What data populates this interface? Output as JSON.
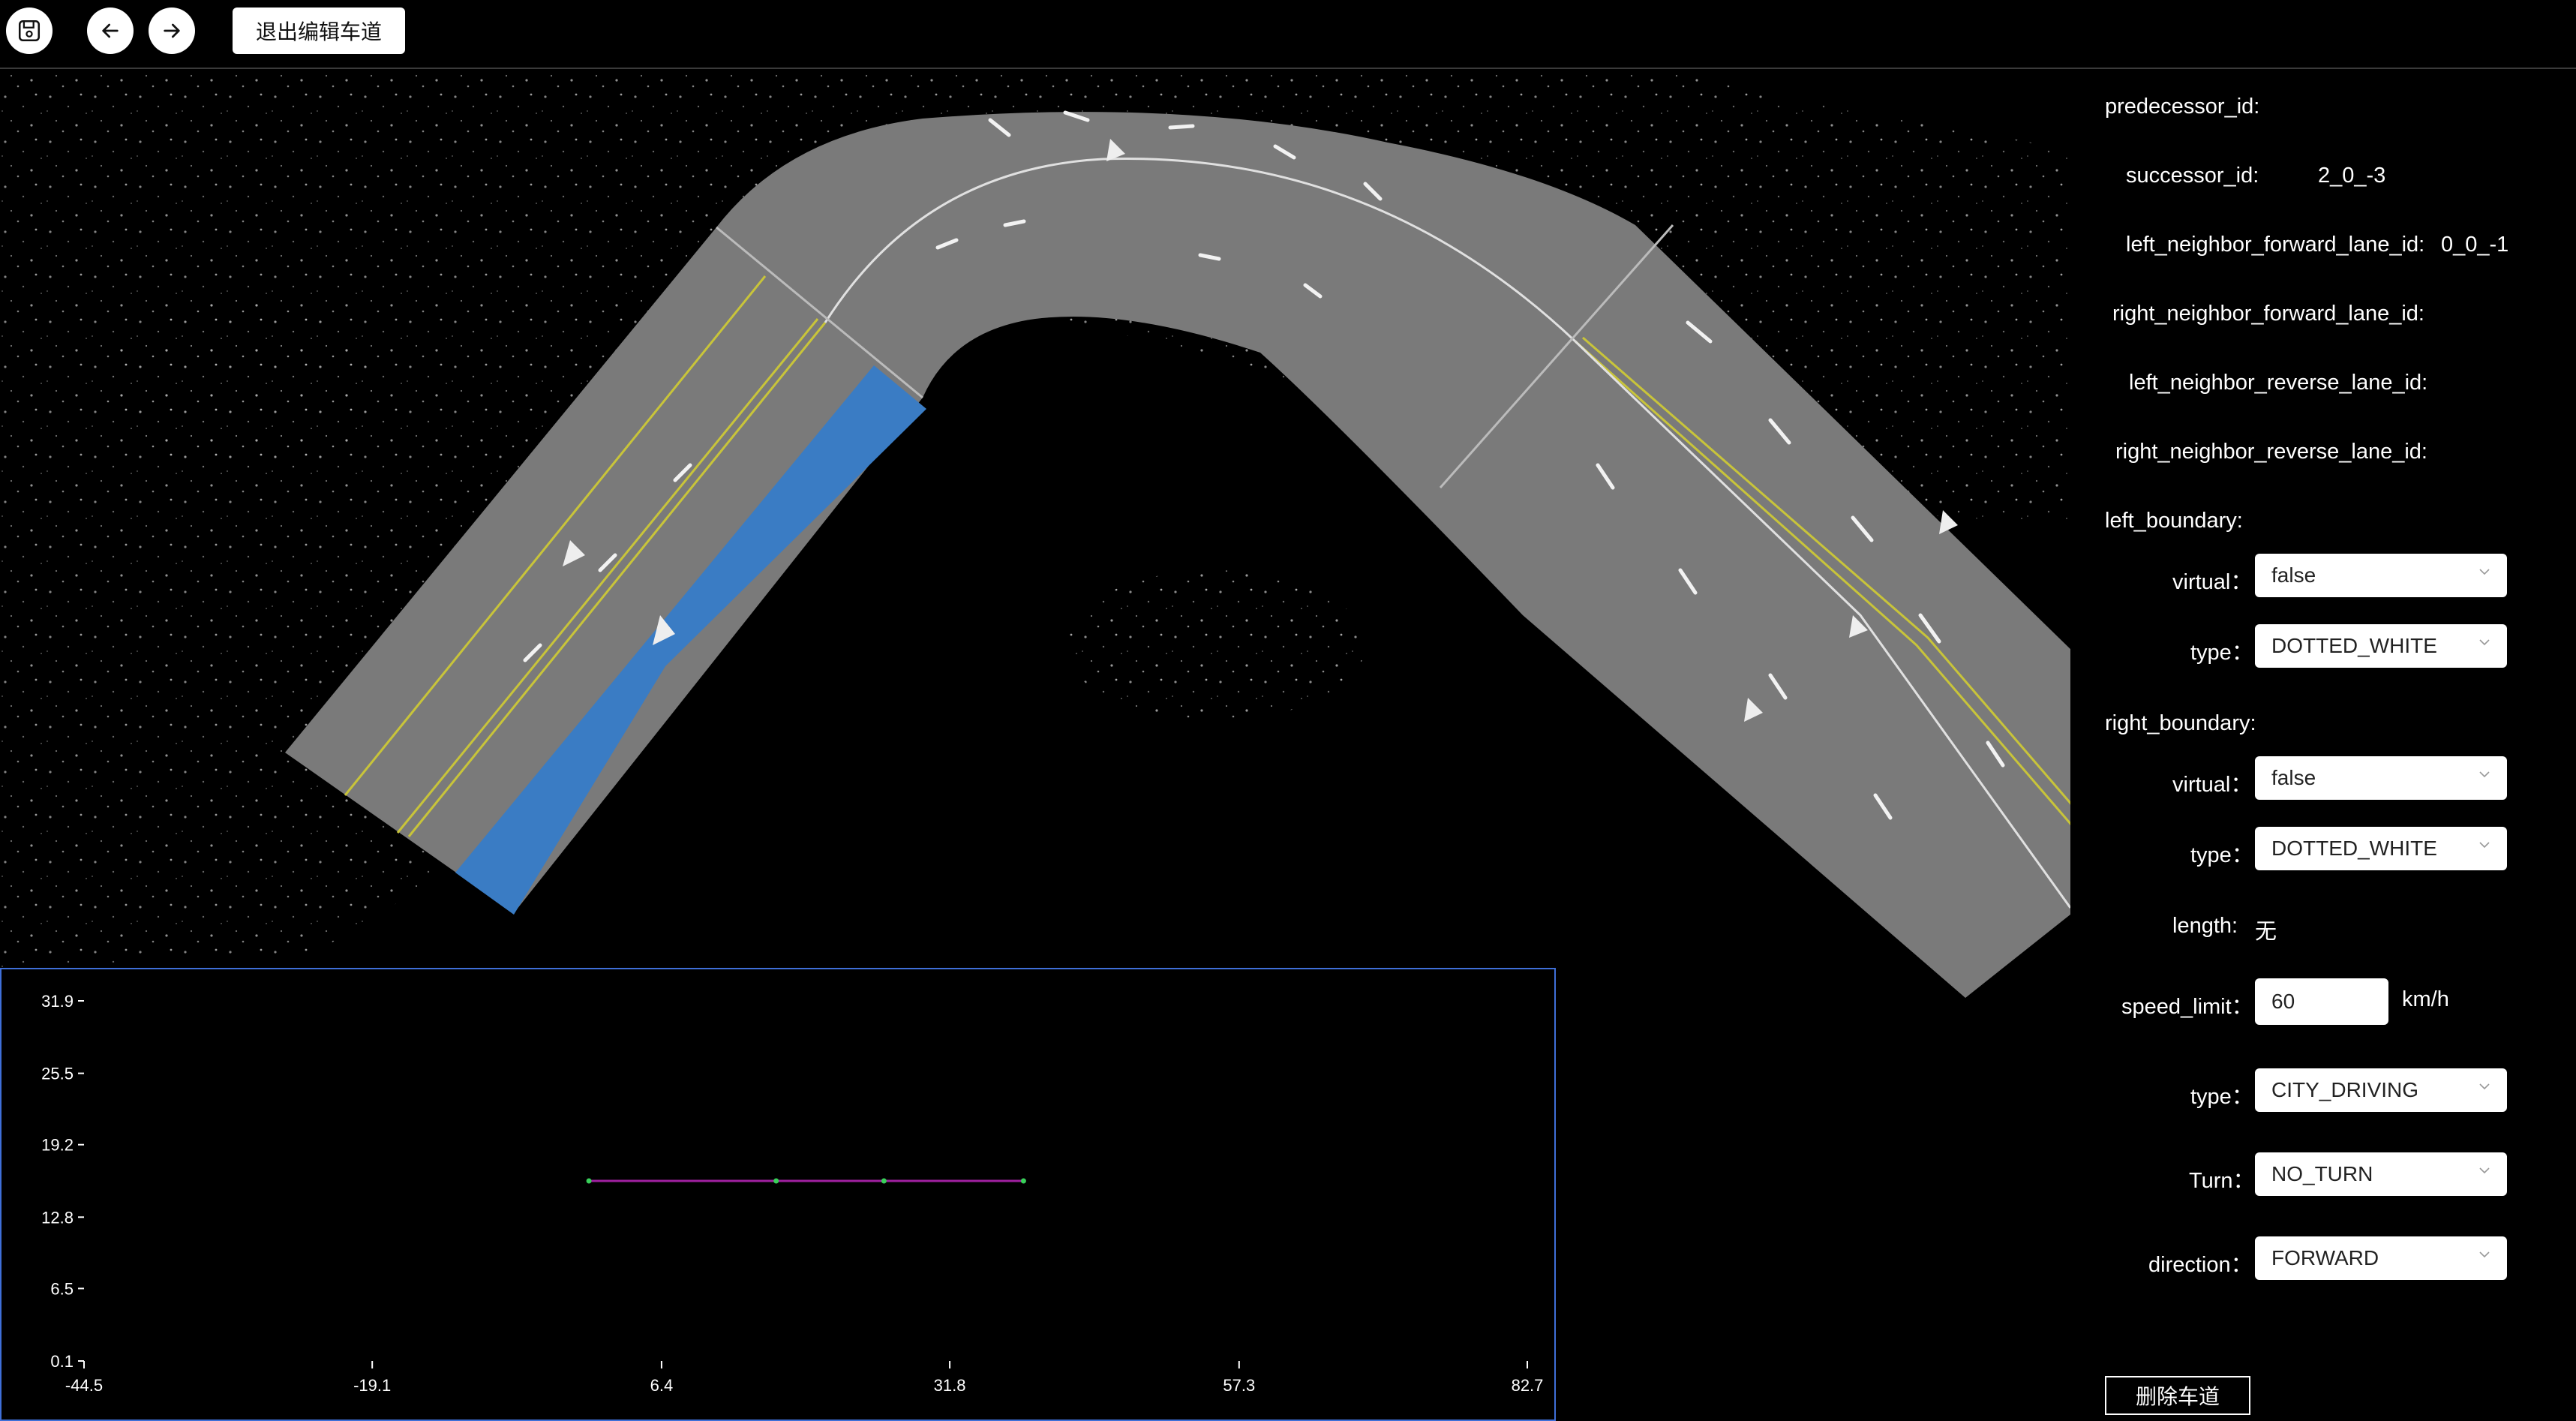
{
  "toolbar": {
    "save_icon": "save-icon",
    "undo_icon": "arrow-left-icon",
    "redo_icon": "arrow-right-icon",
    "exit_label": "退出编辑车道"
  },
  "panel": {
    "predecessor_label": "predecessor_id:",
    "predecessor_value": "",
    "successor_label": "successor_id:",
    "successor_value": "2_0_-3",
    "left_fwd_label": "left_neighbor_forward_lane_id:",
    "left_fwd_value": "0_0_-1",
    "right_fwd_label": "right_neighbor_forward_lane_id:",
    "right_fwd_value": "",
    "left_rev_label": "left_neighbor_reverse_lane_id:",
    "left_rev_value": "",
    "right_rev_label": "right_neighbor_reverse_lane_id:",
    "right_rev_value": "",
    "left_boundary_label": "left_boundary:",
    "left_boundary": {
      "virtual_label": "virtual：",
      "virtual_value": "false",
      "type_label": "type：",
      "type_value": "DOTTED_WHITE"
    },
    "right_boundary_label": "right_boundary:",
    "right_boundary": {
      "virtual_label": "virtual：",
      "virtual_value": "false",
      "type_label": "type：",
      "type_value": "DOTTED_WHITE"
    },
    "length_label": "length:",
    "length_value": "无",
    "speed_limit_label": "speed_limit：",
    "speed_limit_value": "60",
    "speed_unit": "km/h",
    "lane_type_label": "type：",
    "lane_type_value": "CITY_DRIVING",
    "turn_label": "Turn：",
    "turn_value": "NO_TURN",
    "direction_label": "direction：",
    "direction_value": "FORWARD",
    "delete_label": "删除车道"
  },
  "colors": {
    "road": "#7a7a7a",
    "selected_lane": "#3a7cc4",
    "yellow_line": "#c8c43a",
    "chart_border": "#3f6fd8",
    "profile_line": "#a020a0",
    "profile_point": "#39d05a"
  },
  "chart_data": {
    "type": "line",
    "title": "",
    "xlabel": "",
    "ylabel": "",
    "x_ticks": [
      "-44.5",
      "-19.1",
      "6.4",
      "31.8",
      "57.3",
      "82.7"
    ],
    "y_ticks": [
      "0.1",
      "6.5",
      "12.8",
      "19.2",
      "25.5",
      "31.9"
    ],
    "xlim": [
      -44.5,
      82.7
    ],
    "ylim": [
      0.1,
      31.9
    ],
    "series": [
      {
        "x": [
          0,
          16.5,
          26.0,
          38.3
        ],
        "y": [
          16,
          16,
          16,
          16
        ]
      }
    ]
  }
}
